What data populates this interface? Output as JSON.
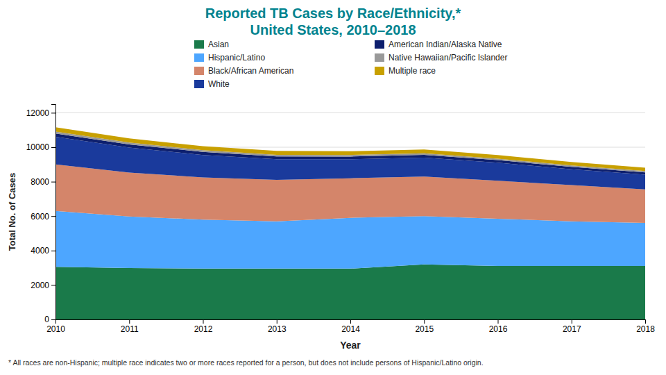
{
  "chart_data": {
    "type": "area",
    "stacked": true,
    "title": "Reported TB Cases by Race/Ethnicity,*",
    "subtitle": "United States, 2010–2018",
    "title_color": "#00838F",
    "xlabel": "Year",
    "ylabel": "Total No. of Cases",
    "annotations": [
      "* All races are non-Hispanic;  multiple race indicates two or more races reported for a person, but does not include persons of Hispanic/Latino origin."
    ],
    "x": [
      2010,
      2011,
      2012,
      2013,
      2014,
      2015,
      2016,
      2017,
      2018
    ],
    "xlim": [
      2010,
      2018
    ],
    "xticks": [
      2010,
      2011,
      2012,
      2013,
      2014,
      2015,
      2016,
      2017,
      2018
    ],
    "ylim": [
      0,
      12500
    ],
    "yticks": [
      0,
      2000,
      4000,
      6000,
      8000,
      10000,
      12000
    ],
    "grid": true,
    "legend": "top",
    "series": [
      {
        "name": "Asian",
        "color": "#1a7a4a",
        "values": [
          3050,
          2980,
          2950,
          2950,
          2950,
          3200,
          3100,
          3100,
          3100
        ]
      },
      {
        "name": "Hispanic/Latino",
        "color": "#4da6ff",
        "values": [
          3250,
          3000,
          2850,
          2750,
          2950,
          2800,
          2750,
          2600,
          2500
        ]
      },
      {
        "name": "Black/African American",
        "color": "#d4856a",
        "values": [
          2700,
          2550,
          2450,
          2400,
          2300,
          2300,
          2200,
          2100,
          1950
        ]
      },
      {
        "name": "White",
        "color": "#1a3a9c",
        "values": [
          1600,
          1450,
          1300,
          1200,
          1100,
          1100,
          1050,
          920,
          860
        ]
      },
      {
        "name": "American Indian/Alaska Native",
        "color": "#0d1f6e",
        "values": [
          200,
          185,
          175,
          165,
          160,
          155,
          150,
          140,
          130
        ]
      },
      {
        "name": "Native Hawaiian/Pacific Islander",
        "color": "#999999",
        "values": [
          110,
          105,
          100,
          95,
          90,
          90,
          85,
          80,
          75
        ]
      },
      {
        "name": "Multiple race",
        "color": "#c8a000",
        "values": [
          250,
          240,
          235,
          230,
          215,
          220,
          210,
          205,
          195
        ]
      }
    ]
  }
}
